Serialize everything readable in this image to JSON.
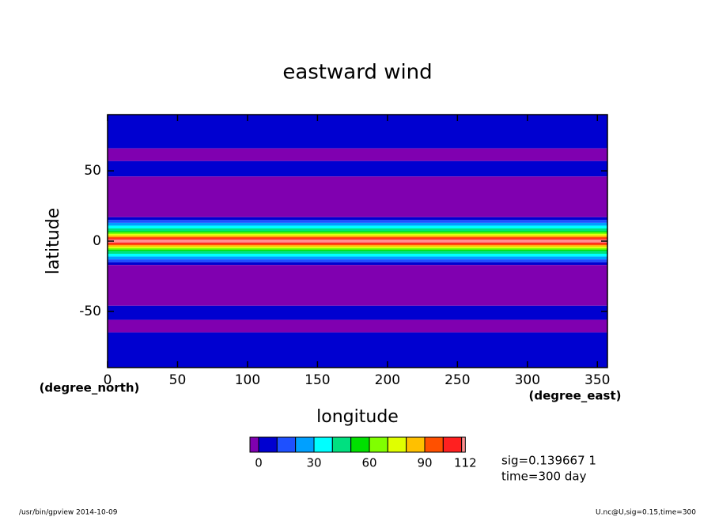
{
  "chart_data": {
    "type": "zonal-contour",
    "title": "eastward wind",
    "xlabel": "longitude",
    "ylabel": "latitude",
    "xunit": "(degree_east)",
    "yunit": "(degree_north)",
    "xlim": [
      0,
      357.1875
    ],
    "ylim": [
      -90,
      90
    ],
    "xticks": [
      0,
      50,
      100,
      150,
      200,
      250,
      300,
      350
    ],
    "yticks": [
      -50,
      0,
      50
    ],
    "ybins": [
      90,
      66,
      57,
      46,
      17,
      15,
      13,
      11,
      9,
      7,
      6,
      5,
      4,
      3,
      2,
      1,
      -1,
      -2,
      -3,
      -4,
      -5,
      -6,
      -7,
      -9,
      -11,
      -13,
      -15,
      -17,
      -46,
      -56,
      -65,
      -90
    ],
    "values": [
      5,
      -3,
      4,
      -4,
      5,
      15,
      25,
      35,
      45,
      55,
      65,
      75,
      85,
      95,
      105,
      111,
      105,
      95,
      85,
      75,
      65,
      55,
      45,
      35,
      25,
      15,
      5,
      -4,
      4,
      -3,
      5
    ],
    "colorbar": {
      "levels": [
        0,
        10,
        20,
        30,
        40,
        50,
        60,
        70,
        80,
        90,
        100,
        110,
        112
      ],
      "colors": [
        "#8000b0",
        "#0000d0",
        "#1e50ff",
        "#00a0ff",
        "#00ffff",
        "#00e080",
        "#00e000",
        "#80ff00",
        "#e0ff00",
        "#ffc000",
        "#ff5000",
        "#ff2020",
        "#ff9090"
      ],
      "ticks": [
        0,
        30,
        60,
        90,
        112
      ]
    },
    "notes": [
      "sig=0.139667 1",
      "time=300 day"
    ],
    "footer_left": "/usr/bin/gpview  2014-10-09",
    "footer_right": "U.nc@U,sig=0.15,time=300"
  }
}
